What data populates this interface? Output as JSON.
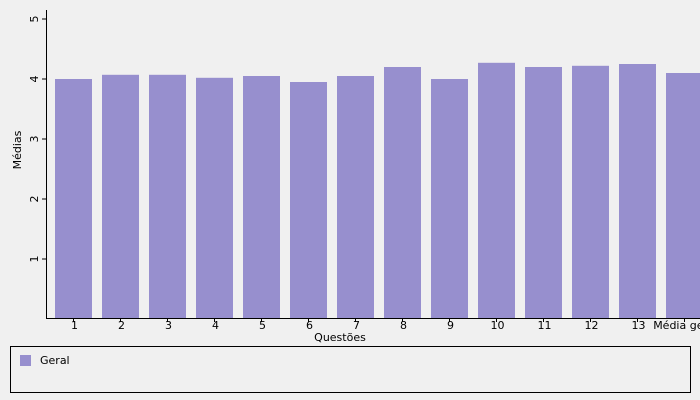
{
  "chart_data": {
    "type": "bar",
    "x_label": "Questões",
    "y_label": "Médias",
    "categories": [
      "1",
      "2",
      "3",
      "4",
      "5",
      "6",
      "7",
      "8",
      "9",
      "10",
      "11",
      "12",
      "13",
      "Média geral"
    ],
    "series": [
      {
        "name": "Geral",
        "color": "#978fce",
        "values": [
          4.0,
          4.07,
          4.07,
          4.02,
          4.05,
          3.95,
          4.05,
          4.2,
          4.0,
          4.27,
          4.2,
          4.22,
          4.25,
          4.1
        ]
      }
    ],
    "ylim": [
      0,
      5
    ],
    "yticks": [
      1,
      2,
      3,
      4,
      5
    ]
  }
}
